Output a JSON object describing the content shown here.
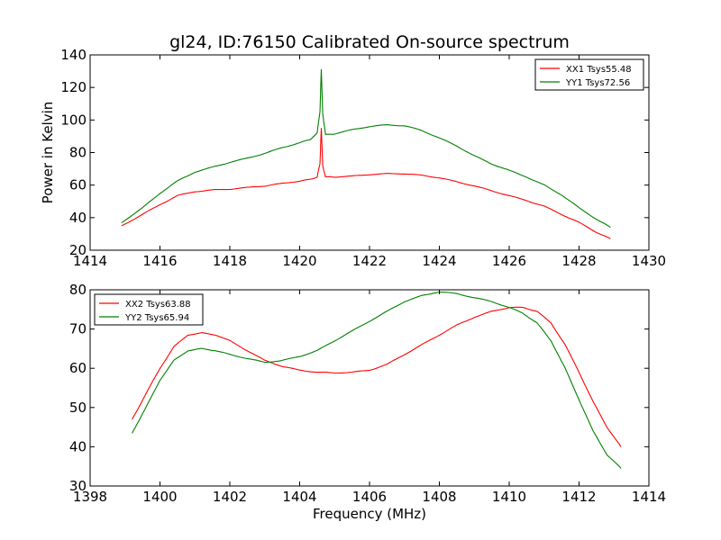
{
  "figure": {
    "title": "gl24, ID:76150 Calibrated On-source spectrum",
    "xlabel": "Frequency (MHz)"
  },
  "chart_data": [
    {
      "type": "line",
      "title": "gl24, ID:76150 Calibrated On-source spectrum",
      "xlabel": "",
      "ylabel": "Power in Kelvin",
      "xlim": [
        1414,
        1430
      ],
      "ylim": [
        20,
        140
      ],
      "xticks": [
        1414,
        1416,
        1418,
        1420,
        1422,
        1424,
        1426,
        1428,
        1430
      ],
      "yticks": [
        20,
        40,
        60,
        80,
        100,
        120,
        140
      ],
      "grid": false,
      "legend": "top-right",
      "series": [
        {
          "name": "XX1 Tsys55.48",
          "color": "#ff0000",
          "x": [
            1414.9,
            1415.5,
            1416.0,
            1416.5,
            1417.0,
            1417.5,
            1418.0,
            1418.5,
            1419.0,
            1419.5,
            1420.0,
            1420.3,
            1420.5,
            1420.58,
            1420.62,
            1420.66,
            1420.74,
            1421.0,
            1421.5,
            1422.0,
            1422.5,
            1423.0,
            1423.5,
            1424.0,
            1424.5,
            1425.0,
            1425.5,
            1426.0,
            1426.5,
            1427.0,
            1427.5,
            1428.0,
            1428.5,
            1428.9
          ],
          "values": [
            35,
            42,
            48,
            53.5,
            56,
            57,
            57.5,
            58.5,
            59.5,
            61,
            62.5,
            63.5,
            65,
            73,
            95,
            72,
            65,
            65,
            65.5,
            66.5,
            67,
            67,
            66,
            64.5,
            62,
            59.5,
            56.5,
            53.5,
            50.5,
            47,
            42,
            37,
            31,
            27
          ]
        },
        {
          "name": "YY1 Tsys72.56",
          "color": "#008000",
          "x": [
            1414.9,
            1415.5,
            1416.0,
            1416.5,
            1417.0,
            1417.5,
            1418.0,
            1418.5,
            1419.0,
            1419.5,
            1420.0,
            1420.3,
            1420.5,
            1420.58,
            1420.62,
            1420.66,
            1420.74,
            1421.0,
            1421.5,
            1422.0,
            1422.5,
            1423.0,
            1423.5,
            1424.0,
            1424.5,
            1425.0,
            1425.5,
            1426.0,
            1426.5,
            1427.0,
            1427.5,
            1428.0,
            1428.5,
            1428.9
          ],
          "values": [
            37,
            46,
            55,
            62.5,
            68,
            71,
            74,
            76.5,
            79.5,
            83,
            86,
            88,
            92,
            105,
            131,
            104,
            91,
            91.5,
            94,
            96,
            97,
            96.5,
            93.5,
            89,
            84,
            78,
            73,
            69,
            65,
            60,
            54,
            46,
            39,
            34
          ]
        }
      ]
    },
    {
      "type": "line",
      "title": "",
      "xlabel": "Frequency (MHz)",
      "ylabel": "",
      "xlim": [
        1398,
        1414
      ],
      "ylim": [
        30,
        80
      ],
      "xticks": [
        1398,
        1400,
        1402,
        1404,
        1406,
        1408,
        1410,
        1412,
        1414
      ],
      "yticks": [
        30,
        40,
        50,
        60,
        70,
        80
      ],
      "grid": false,
      "legend": "top-left",
      "series": [
        {
          "name": "XX2 Tsys63.88",
          "color": "#ff0000",
          "x": [
            1399.2,
            1399.6,
            1400.0,
            1400.4,
            1400.8,
            1401.2,
            1401.6,
            1402.0,
            1402.5,
            1403.0,
            1403.5,
            1404.0,
            1404.5,
            1405.0,
            1405.5,
            1406.0,
            1406.5,
            1407.0,
            1407.5,
            1408.0,
            1408.5,
            1409.0,
            1409.5,
            1410.0,
            1410.4,
            1410.8,
            1411.2,
            1411.6,
            1412.0,
            1412.4,
            1412.8,
            1413.2
          ],
          "values": [
            47,
            53.5,
            60,
            65.5,
            68.5,
            69,
            68.5,
            67,
            64.5,
            62,
            60.5,
            59.5,
            59,
            58.8,
            59,
            59.5,
            61,
            63.5,
            66,
            68.5,
            71,
            73,
            74.5,
            75.5,
            75.5,
            74.5,
            71.5,
            66,
            59,
            51.5,
            45,
            40
          ]
        },
        {
          "name": "YY2 Tsys65.94",
          "color": "#008000",
          "x": [
            1399.2,
            1399.6,
            1400.0,
            1400.4,
            1400.8,
            1401.2,
            1401.6,
            1402.0,
            1402.5,
            1403.0,
            1403.5,
            1404.0,
            1404.5,
            1405.0,
            1405.5,
            1406.0,
            1406.5,
            1407.0,
            1407.5,
            1408.0,
            1408.5,
            1409.0,
            1409.5,
            1410.0,
            1410.4,
            1410.8,
            1411.2,
            1411.6,
            1412.0,
            1412.4,
            1412.8,
            1413.2
          ],
          "values": [
            43.5,
            50,
            57,
            62,
            64.5,
            65,
            64.5,
            63.5,
            62.5,
            61.5,
            62,
            63,
            64.5,
            67,
            69.5,
            72,
            74.5,
            77,
            78.5,
            79.5,
            79,
            78,
            77,
            75.5,
            74,
            71.5,
            67,
            60,
            52,
            44,
            38,
            34.5
          ]
        }
      ]
    }
  ]
}
